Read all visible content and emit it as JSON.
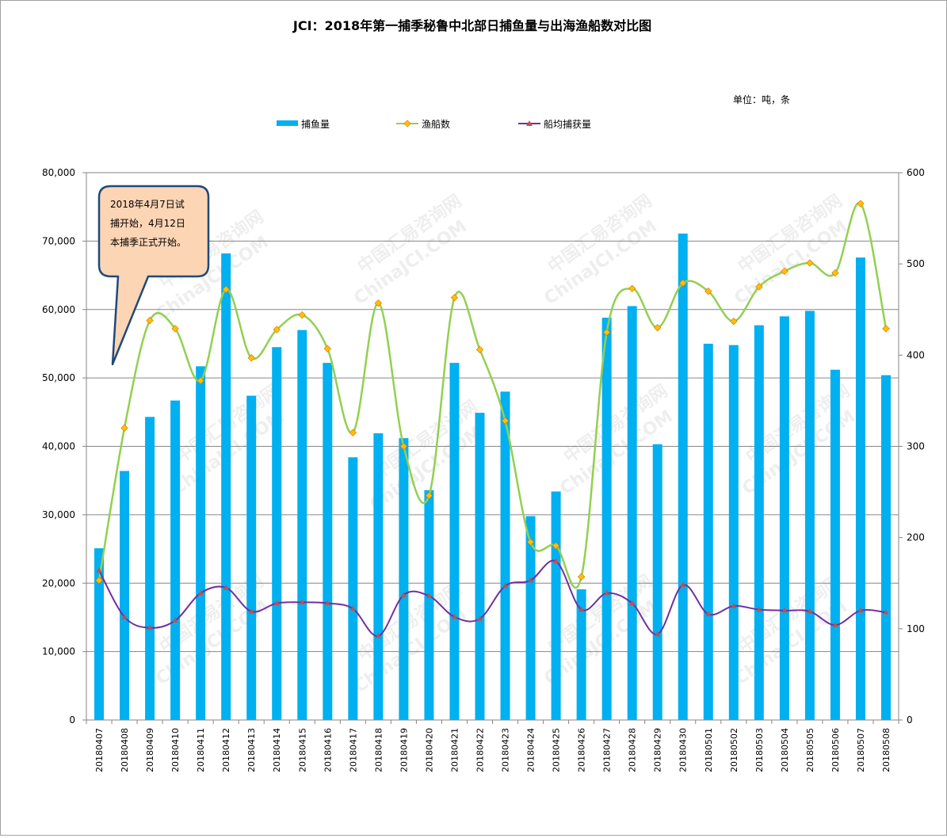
{
  "chart_data": {
    "type": "bar",
    "title": "JCI：2018年第一捕季秘鲁中北部日捕鱼量与出海渔船数对比图",
    "unit_label": "单位：吨，条",
    "annotation": [
      "2018年4月7日试",
      "捕开始，4月12日",
      "本捕季正式开始。"
    ],
    "watermark": [
      "中国汇易咨询网",
      "ChinaJCI.COM"
    ],
    "legend_position": "top",
    "grid": true,
    "categories": [
      "20180407",
      "20180408",
      "20180409",
      "20180410",
      "20180411",
      "20180412",
      "20180413",
      "20180414",
      "20180415",
      "20180416",
      "20180417",
      "20180418",
      "20180419",
      "20180420",
      "20180421",
      "20180422",
      "20180423",
      "20180424",
      "20180425",
      "20180426",
      "20180427",
      "20180428",
      "20180429",
      "20180430",
      "20180501",
      "20180502",
      "20180503",
      "20180504",
      "20180505",
      "20180506",
      "20180507",
      "20180508"
    ],
    "y_left": {
      "min": 0,
      "max": 80000,
      "step": 10000,
      "tick_labels": [
        "0",
        "10,000",
        "20,000",
        "30,000",
        "40,000",
        "50,000",
        "60,000",
        "70,000",
        "80,000"
      ]
    },
    "y_right": {
      "min": 0,
      "max": 600,
      "step": 100,
      "tick_labels": [
        "0",
        "100",
        "200",
        "300",
        "400",
        "500",
        "600"
      ]
    },
    "series": [
      {
        "name": "捕鱼量",
        "type": "bar",
        "axis": "left",
        "color": "#00b0f0",
        "values": [
          25100,
          36400,
          44300,
          46700,
          51700,
          68200,
          47400,
          54500,
          57000,
          52200,
          38400,
          41900,
          41200,
          33600,
          52200,
          44900,
          48000,
          29800,
          33400,
          19100,
          58800,
          60500,
          40300,
          71100,
          55000,
          54800,
          57700,
          59000,
          59800,
          51200,
          67600,
          50400
        ]
      },
      {
        "name": "渔船数",
        "type": "line",
        "axis": "right",
        "color": "#92d050",
        "marker_color": "#ffc000",
        "values": [
          153,
          320,
          438,
          429,
          372,
          472,
          397,
          428,
          444,
          407,
          315,
          457,
          300,
          246,
          463,
          406,
          328,
          195,
          191,
          157,
          425,
          473,
          430,
          479,
          470,
          437,
          475,
          492,
          501,
          490,
          566,
          429
        ]
      },
      {
        "name": "船均捕获量",
        "type": "line",
        "axis": "right",
        "color": "#7030a0",
        "marker_color": "#c0504d",
        "values": [
          164,
          113,
          101,
          109,
          139,
          145,
          119,
          128,
          129,
          128,
          122,
          92,
          137,
          136,
          113,
          111,
          147,
          153,
          174,
          121,
          139,
          128,
          94,
          148,
          116,
          125,
          121,
          120,
          119,
          104,
          120,
          118
        ]
      }
    ]
  }
}
